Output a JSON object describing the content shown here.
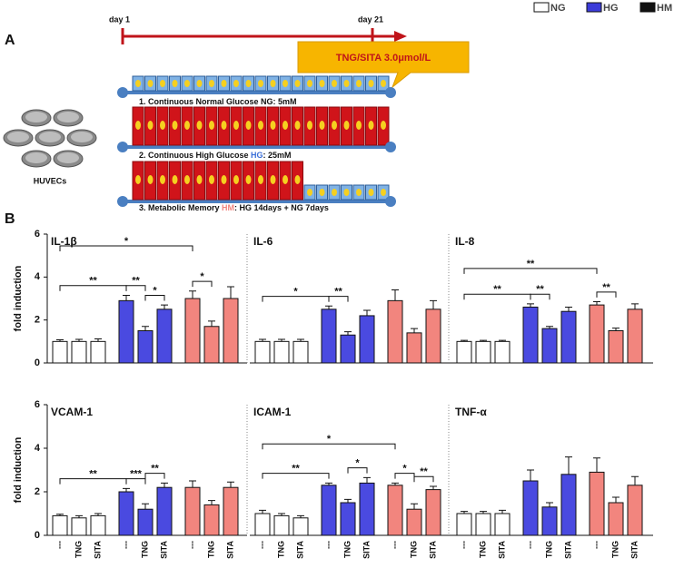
{
  "diagram": {
    "panel_a": "A",
    "panel_b": "B",
    "day_start": "day 1",
    "day_end": "day 21",
    "treatment": "TNG/SITA 3.0μmol/L",
    "cells": "HUVECs",
    "rows": [
      [
        "1. Continuous Normal Glucose NG: 5mM"
      ],
      [
        "2. Continuous High Glucose ",
        "HG",
        ": 25mM"
      ],
      [
        "3. Metabolic Memory ",
        "HM",
        ": HG 14days + NG 7days"
      ]
    ]
  },
  "legend": [
    {
      "label": "NG",
      "color": "#ffffff"
    },
    {
      "label": "HG",
      "color": "#3b3bd9"
    },
    {
      "label": "HM",
      "color": "#111111"
    }
  ],
  "chart_data": [
    {
      "type": "bar",
      "title": "IL-1β",
      "y_label": "fold induction",
      "ylim": [
        0,
        6
      ],
      "yticks": [
        0,
        2,
        4,
        6
      ],
      "series": [
        {
          "color": "#ffffff",
          "values": [
            1.0,
            1.0,
            1.0
          ],
          "errors": [
            0.08,
            0.1,
            0.12
          ]
        },
        {
          "color": "#4a4ae0",
          "values": [
            2.9,
            1.5,
            2.5
          ],
          "errors": [
            0.25,
            0.2,
            0.2
          ]
        },
        {
          "color": "#f2857e",
          "values": [
            3.0,
            1.7,
            3.0
          ],
          "errors": [
            0.35,
            0.25,
            0.55
          ]
        }
      ],
      "annotations": [
        {
          "label": "*",
          "from": 0,
          "to": 6
        },
        {
          "label": "**",
          "from": 0,
          "to": 3
        },
        {
          "label": "**",
          "from": 3,
          "to": 4
        },
        {
          "label": "*",
          "from": 4,
          "to": 5
        },
        {
          "label": "*",
          "from": 6,
          "to": 7
        }
      ]
    },
    {
      "type": "bar",
      "title": "IL-6",
      "ylim": [
        0,
        6
      ],
      "series": [
        {
          "color": "#ffffff",
          "values": [
            1.0,
            1.0,
            1.0
          ],
          "errors": [
            0.1,
            0.1,
            0.1
          ]
        },
        {
          "color": "#4a4ae0",
          "values": [
            2.5,
            1.3,
            2.2
          ],
          "errors": [
            0.15,
            0.15,
            0.25
          ]
        },
        {
          "color": "#f2857e",
          "values": [
            2.9,
            1.4,
            2.5
          ],
          "errors": [
            0.5,
            0.2,
            0.4
          ]
        }
      ],
      "annotations": [
        {
          "label": "*",
          "from": 0,
          "to": 3
        },
        {
          "label": "**",
          "from": 3,
          "to": 4
        }
      ]
    },
    {
      "type": "bar",
      "title": "IL-8",
      "ylim": [
        0,
        6
      ],
      "series": [
        {
          "color": "#ffffff",
          "values": [
            1.0,
            1.0,
            1.0
          ],
          "errors": [
            0.05,
            0.05,
            0.05
          ]
        },
        {
          "color": "#4a4ae0",
          "values": [
            2.6,
            1.6,
            2.4
          ],
          "errors": [
            0.15,
            0.1,
            0.2
          ]
        },
        {
          "color": "#f2857e",
          "values": [
            2.7,
            1.5,
            2.5
          ],
          "errors": [
            0.15,
            0.12,
            0.25
          ]
        }
      ],
      "annotations": [
        {
          "label": "**",
          "from": 0,
          "to": 6
        },
        {
          "label": "**",
          "from": 0,
          "to": 3
        },
        {
          "label": "**",
          "from": 3,
          "to": 4
        },
        {
          "label": "**",
          "from": 6,
          "to": 7
        }
      ]
    },
    {
      "type": "bar",
      "title": "VCAM-1",
      "y_label": "fold induction",
      "ylim": [
        0,
        6
      ],
      "yticks": [
        0,
        2,
        4,
        6
      ],
      "categories": [
        "---",
        "TNG",
        "SITA"
      ],
      "series": [
        {
          "color": "#ffffff",
          "values": [
            0.9,
            0.8,
            0.9
          ],
          "errors": [
            0.07,
            0.1,
            0.1
          ]
        },
        {
          "color": "#4a4ae0",
          "values": [
            2.0,
            1.2,
            2.2
          ],
          "errors": [
            0.15,
            0.25,
            0.2
          ]
        },
        {
          "color": "#f2857e",
          "values": [
            2.2,
            1.4,
            2.2
          ],
          "errors": [
            0.3,
            0.2,
            0.25
          ]
        }
      ],
      "annotations": [
        {
          "label": "**",
          "from": 0,
          "to": 3
        },
        {
          "label": "***",
          "from": 3,
          "to": 4
        },
        {
          "label": "**",
          "from": 4,
          "to": 5
        }
      ]
    },
    {
      "type": "bar",
      "title": "ICAM-1",
      "ylim": [
        0,
        6
      ],
      "categories": [
        "---",
        "TNG",
        "SITA"
      ],
      "series": [
        {
          "color": "#ffffff",
          "values": [
            1.0,
            0.9,
            0.8
          ],
          "errors": [
            0.15,
            0.1,
            0.1
          ]
        },
        {
          "color": "#4a4ae0",
          "values": [
            2.3,
            1.5,
            2.4
          ],
          "errors": [
            0.1,
            0.15,
            0.25
          ]
        },
        {
          "color": "#f2857e",
          "values": [
            2.3,
            1.2,
            2.1
          ],
          "errors": [
            0.1,
            0.25,
            0.15
          ]
        }
      ],
      "annotations": [
        {
          "label": "*",
          "from": 0,
          "to": 6
        },
        {
          "label": "**",
          "from": 0,
          "to": 3
        },
        {
          "label": "*",
          "from": 4,
          "to": 5
        },
        {
          "label": "*",
          "from": 6,
          "to": 7
        },
        {
          "label": "**",
          "from": 7,
          "to": 8
        }
      ]
    },
    {
      "type": "bar",
      "title": "TNF-α",
      "ylim": [
        0,
        6
      ],
      "categories": [
        "---",
        "TNG",
        "SITA"
      ],
      "series": [
        {
          "color": "#ffffff",
          "values": [
            1.0,
            1.0,
            1.0
          ],
          "errors": [
            0.1,
            0.1,
            0.15
          ]
        },
        {
          "color": "#4a4ae0",
          "values": [
            2.5,
            1.3,
            2.8
          ],
          "errors": [
            0.5,
            0.2,
            0.8
          ]
        },
        {
          "color": "#f2857e",
          "values": [
            2.9,
            1.5,
            2.3
          ],
          "errors": [
            0.65,
            0.25,
            0.4
          ]
        }
      ],
      "annotations": []
    }
  ]
}
